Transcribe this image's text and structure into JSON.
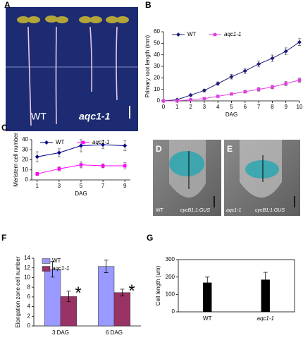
{
  "panel_labels": [
    "A",
    "B",
    "C",
    "D",
    "E",
    "F",
    "G"
  ],
  "photos": [
    {
      "labels": [
        "WT",
        "aqc1-1"
      ]
    },
    {
      "labels": [
        "WT",
        "cycB1;1:GUS"
      ]
    },
    {
      "labels": [
        "aqc1-1",
        "cycB1;1:GUS"
      ]
    }
  ],
  "chart_data": [
    {
      "type": "line",
      "x_label": "DAG",
      "y_label": "Primary root length (mm)",
      "x": [
        0,
        1,
        2,
        3,
        4,
        5,
        6,
        7,
        8,
        9,
        10
      ],
      "xlim": [
        0,
        10
      ],
      "xticks": [
        0,
        1,
        2,
        3,
        4,
        5,
        6,
        7,
        8,
        9,
        10
      ],
      "ylim": [
        0,
        60
      ],
      "yticks": [
        0,
        10,
        20,
        30,
        40,
        50,
        60
      ],
      "legend": "top-left",
      "series": [
        {
          "name": "WT",
          "color": "#1f1f7a",
          "marker": "diamond",
          "values": [
            0,
            1,
            5,
            9,
            15,
            21,
            26,
            32,
            37,
            43,
            51
          ],
          "errors": [
            0.5,
            0.8,
            1,
            1.2,
            1.5,
            2,
            2.2,
            2.5,
            2.8,
            3,
            3
          ]
        },
        {
          "name": "aqc1-1",
          "color": "#e040e0",
          "marker": "square",
          "values": [
            0,
            0,
            1,
            2,
            4,
            6,
            8,
            10,
            12,
            15,
            18
          ],
          "errors": [
            0.3,
            0.4,
            0.5,
            0.7,
            0.8,
            1,
            1.2,
            1.5,
            1.5,
            1.8,
            2
          ]
        }
      ]
    },
    {
      "type": "line",
      "x_label": "DAG",
      "y_label": "Meristem cell number",
      "x": [
        1,
        3,
        5,
        7,
        9
      ],
      "xlim": [
        0.5,
        9.5
      ],
      "xticks": [
        1,
        3,
        5,
        7,
        9
      ],
      "ylim": [
        0,
        40
      ],
      "yticks": [
        0,
        10,
        20,
        30,
        40
      ],
      "legend": "top-left",
      "series": [
        {
          "name": "WT",
          "color": "#00008b",
          "marker": "diamond",
          "values": [
            23,
            27,
            34,
            35,
            34
          ],
          "errors": [
            5,
            4,
            6,
            4,
            5
          ]
        },
        {
          "name": "aqc1-1",
          "color": "#ff00ff",
          "marker": "square",
          "values": [
            6,
            11,
            15,
            14,
            14
          ],
          "errors": [
            1.5,
            2,
            3,
            2,
            3
          ]
        }
      ]
    },
    {
      "type": "bar",
      "y_label": "Elongation zone cell number",
      "categories": [
        "3 DAG",
        "6 DAG"
      ],
      "ylim": [
        0,
        14
      ],
      "yticks": [
        0,
        2,
        4,
        6,
        8,
        10,
        12,
        14
      ],
      "legend": "top-left",
      "series": [
        {
          "name": "WT",
          "color": "#9999ff",
          "values": [
            11.7,
            12.3
          ],
          "errors": [
            1.6,
            1.3
          ]
        },
        {
          "name": "aqc1-1",
          "color": "#993366",
          "values": [
            6.1,
            6.9
          ],
          "errors": [
            1.1,
            0.7
          ]
        }
      ],
      "annotations": [
        "*",
        "*"
      ]
    },
    {
      "type": "bar",
      "y_label": "Cell length (um)",
      "frame": true,
      "categories": [
        "WT",
        "aqc1-1"
      ],
      "ylim": [
        0,
        300
      ],
      "yticks": [
        0,
        100,
        200,
        300
      ],
      "series": [
        {
          "color": "#000000",
          "values": [
            168,
            185
          ],
          "errors": [
            32,
            42
          ]
        }
      ]
    }
  ]
}
